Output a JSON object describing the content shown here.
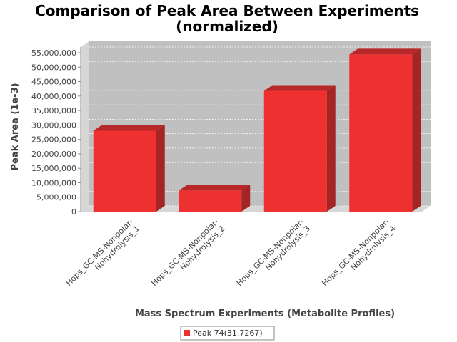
{
  "chart_data": {
    "type": "bar",
    "title": "Comparison of Peak Area Between Experiments",
    "subtitle": "(normalized)",
    "xlabel": "Mass Spectrum Experiments (Metabolite Profiles)",
    "ylabel": "Peak Area (1e-3)",
    "categories": [
      [
        "Hops_GC-MS-Nonpolar-",
        "Nohydrolysis_1"
      ],
      [
        "Hops_GC-MS-Nonpolar-",
        "Nohydrolysis_2"
      ],
      [
        "Hops_GC-MS-Nonpolar-",
        "Nohydrolysis_3"
      ],
      [
        "Hops_GC-MS-Nonpolar-",
        "Nohydrolysis_4"
      ]
    ],
    "series": [
      {
        "name": "Peak 74(31.7267)",
        "values": [
          28000000,
          7300000,
          41800000,
          54400000
        ]
      }
    ],
    "yticks": [
      "0",
      "5,000,000",
      "10,000,000",
      "15,000,000",
      "20,000,000",
      "25,000,000",
      "30,000,000",
      "35,000,000",
      "40,000,000",
      "45,000,000",
      "50,000,000",
      "55,000,000"
    ],
    "ylim": [
      0,
      55000000
    ],
    "grid": true,
    "legend": "bottom",
    "colors": {
      "bar": "#ee3030",
      "bar_top": "#b82828",
      "bar_side": "#a52424",
      "plot_bg": "#c0c0c0",
      "plot_wall": "#d6d6d6"
    }
  }
}
